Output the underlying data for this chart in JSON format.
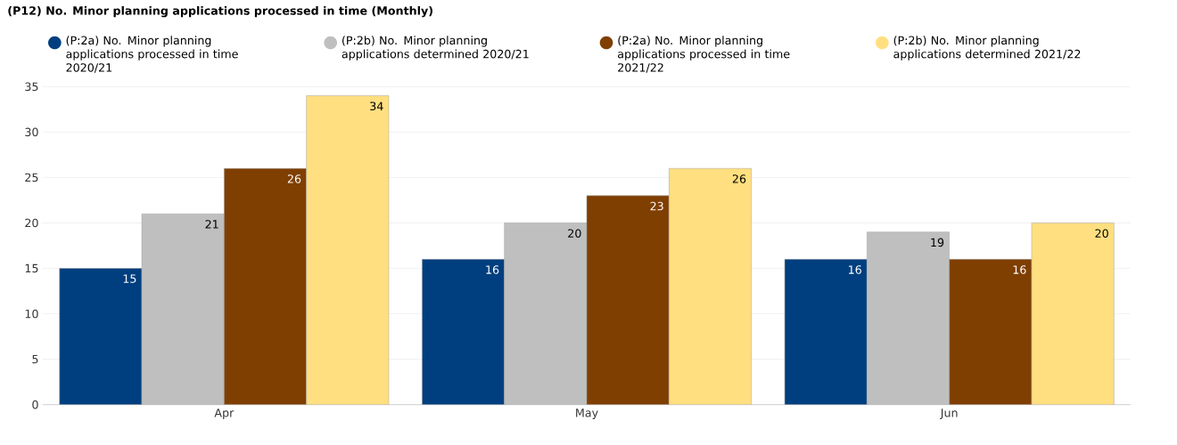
{
  "chart_data": {
    "type": "bar",
    "title": "(P12) No. Minor planning applications processed in time (Monthly)",
    "categories": [
      "Apr",
      "May",
      "Jun"
    ],
    "series": [
      {
        "name": "(P:2a) No. Minor planning applications processed in time 2020/21",
        "color": "#003f7f",
        "values": [
          15,
          16,
          16
        ]
      },
      {
        "name": "(P:2b) No. Minor planning applications determined 2020/21",
        "color": "#bfbfbf",
        "values": [
          21,
          20,
          19
        ]
      },
      {
        "name": "(P:2a) No. Minor planning applications processed in time 2021/22",
        "color": "#7f3f00",
        "values": [
          26,
          23,
          16
        ]
      },
      {
        "name": "(P:2b) No. Minor planning applications determined 2021/22",
        "color": "#ffdf7f",
        "values": [
          34,
          26,
          20
        ]
      }
    ],
    "ylim": [
      0,
      35
    ],
    "yticks": [
      0,
      5,
      10,
      15,
      20,
      25,
      30,
      35
    ],
    "grid": "y",
    "legend": "top",
    "data_labels": true
  }
}
